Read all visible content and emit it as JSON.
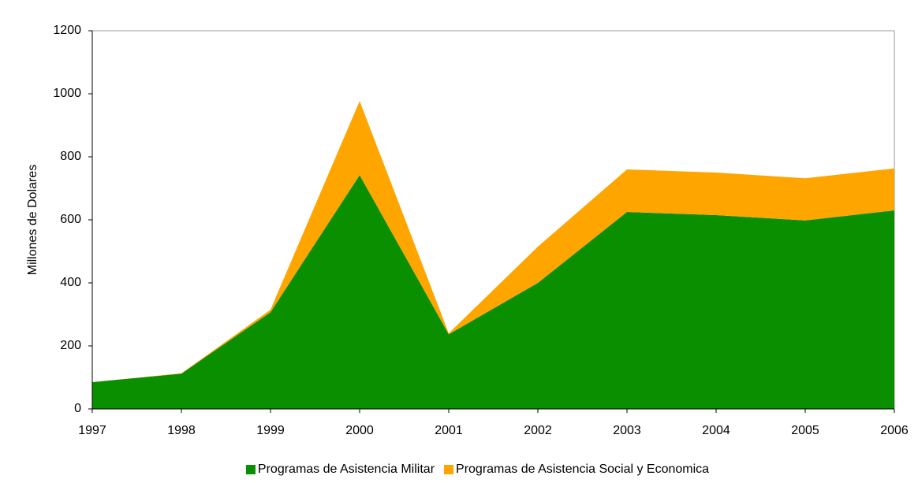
{
  "chart_data": {
    "type": "stacked-area",
    "y_label": "Millones de Dolares",
    "categories": [
      "1997",
      "1998",
      "1999",
      "2000",
      "2001",
      "2002",
      "2003",
      "2004",
      "2005",
      "2006"
    ],
    "series": [
      {
        "name": "Programas de Asistencia Militar",
        "color": "#0a8f00",
        "values": [
          85,
          112,
          307,
          742,
          237,
          400,
          625,
          615,
          598,
          630
        ]
      },
      {
        "name": "Programas de Asistencia Social y Economica",
        "color": "#ffa500",
        "values": [
          0,
          1,
          8,
          235,
          3,
          115,
          135,
          135,
          134,
          133
        ]
      }
    ],
    "ylim": [
      0,
      1200
    ],
    "yticks": [
      0,
      200,
      400,
      600,
      800,
      1000,
      1200
    ],
    "legend": "bottom"
  }
}
